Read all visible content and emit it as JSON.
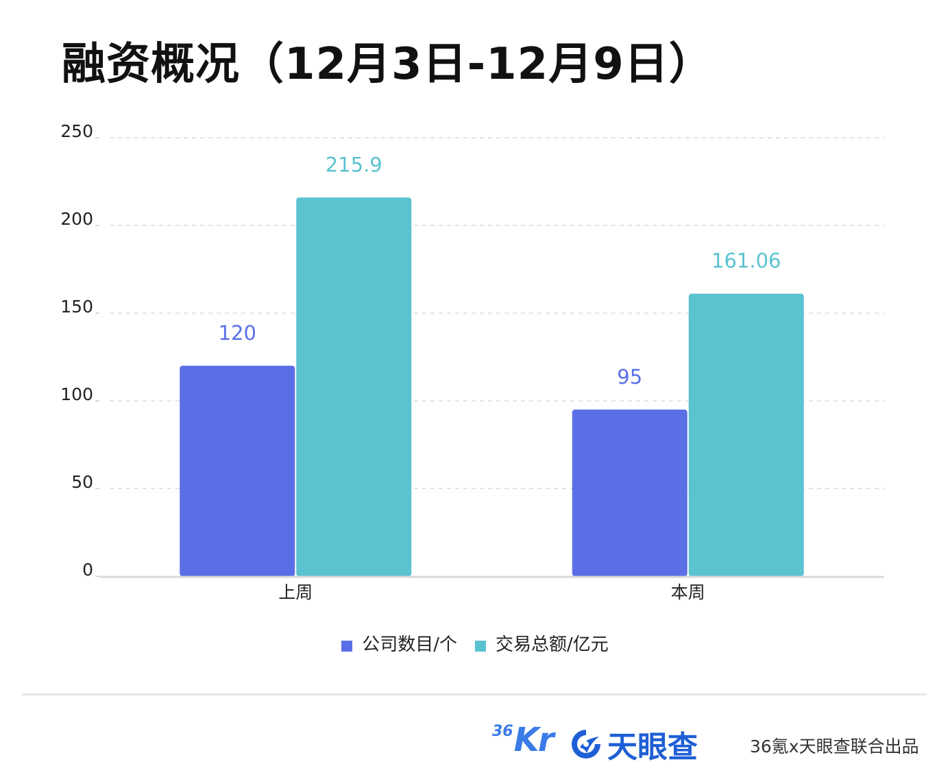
{
  "title": "融资概况（12月3日-12月9日）",
  "colors": {
    "series_1": "#5a6fe6",
    "series_2": "#5bc2d0",
    "axis": "#d9d9d9",
    "grid": "#e4e4e4",
    "brand_blue": "#1f5fd6"
  },
  "chart_data": {
    "type": "bar",
    "categories": [
      "上周",
      "本周"
    ],
    "series": [
      {
        "name": "公司数目/个",
        "values": [
          120,
          95
        ],
        "labels": [
          "120",
          "95"
        ]
      },
      {
        "name": "交易总额/亿元",
        "values": [
          215.9,
          161.06
        ],
        "labels": [
          "215.9",
          "161.06"
        ]
      }
    ],
    "ylim": [
      0,
      250
    ],
    "yticks": [
      0,
      50,
      100,
      150,
      200,
      250
    ],
    "grid": true,
    "legend": "bottom-center"
  },
  "footer": {
    "logo_36kr": {
      "superscript": "36",
      "main": "Kr"
    },
    "logo_tianyancha": {
      "icon": "tianyancha-swirl-icon",
      "text": "天眼查"
    },
    "credit": "36氪x天眼查联合出品"
  }
}
